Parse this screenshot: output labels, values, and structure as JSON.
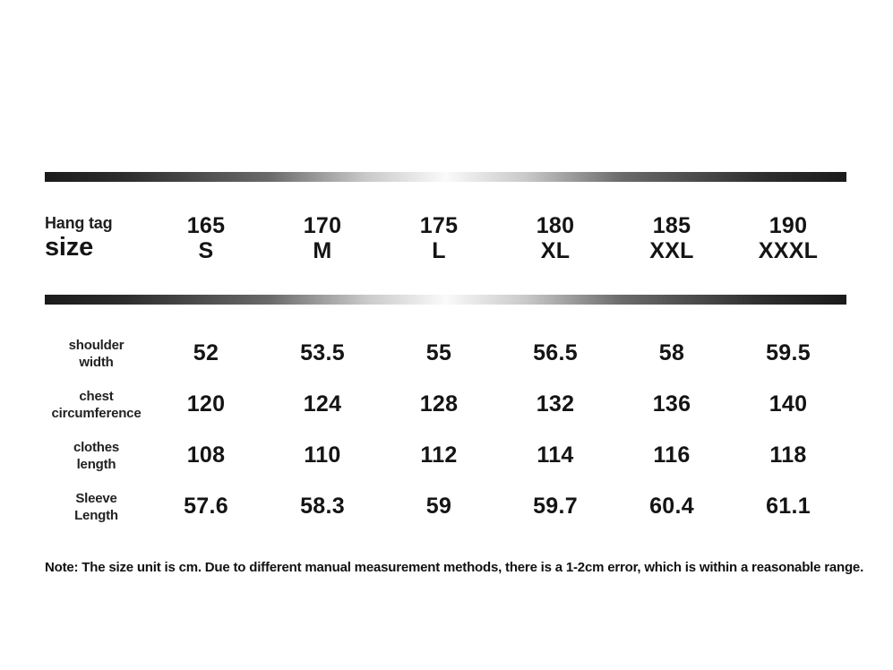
{
  "colors": {
    "background": "#ffffff",
    "text": "#141414",
    "bar_dark": "#1b1b1b",
    "bar_light": "#fafafa"
  },
  "header": {
    "corner": {
      "line1": "Hang tag",
      "line2": "size"
    },
    "columns": [
      {
        "height": "165",
        "size": "S"
      },
      {
        "height": "170",
        "size": "M"
      },
      {
        "height": "175",
        "size": "L"
      },
      {
        "height": "180",
        "size": "XL"
      },
      {
        "height": "185",
        "size": "XXL"
      },
      {
        "height": "190",
        "size": "XXXL"
      }
    ]
  },
  "body": {
    "rows": [
      {
        "label1": "shoulder",
        "label2": "width",
        "values": [
          "52",
          "53.5",
          "55",
          "56.5",
          "58",
          "59.5"
        ]
      },
      {
        "label1": "chest",
        "label2": "circumference",
        "values": [
          "120",
          "124",
          "128",
          "132",
          "136",
          "140"
        ]
      },
      {
        "label1": "clothes",
        "label2": "length",
        "values": [
          "108",
          "110",
          "112",
          "114",
          "116",
          "118"
        ]
      },
      {
        "label1": "Sleeve",
        "label2": "Length",
        "values": [
          "57.6",
          "58.3",
          "59",
          "59.7",
          "60.4",
          "61.1"
        ]
      }
    ]
  },
  "note": {
    "text": "Note: The size unit is cm. Due to different manual measurement methods, there is a 1-2cm error, which is within a reasonable range."
  },
  "chart_data": {
    "type": "table",
    "title": "Hang tag size",
    "columns": [
      "165 S",
      "170 M",
      "175 L",
      "180 XL",
      "185 XXL",
      "190 XXXL"
    ],
    "rows": [
      {
        "label": "shoulder width",
        "values": [
          52,
          53.5,
          55,
          56.5,
          58,
          59.5
        ]
      },
      {
        "label": "chest circumference",
        "values": [
          120,
          124,
          128,
          132,
          136,
          140
        ]
      },
      {
        "label": "clothes length",
        "values": [
          108,
          110,
          112,
          114,
          116,
          118
        ]
      },
      {
        "label": "Sleeve Length",
        "values": [
          57.6,
          58.3,
          59,
          59.7,
          60.4,
          61.1
        ]
      }
    ],
    "note": "Note: The size unit is cm. Due to different manual measurement methods, there is a 1-2cm error, which is within a reasonable range.",
    "unit": "cm"
  }
}
